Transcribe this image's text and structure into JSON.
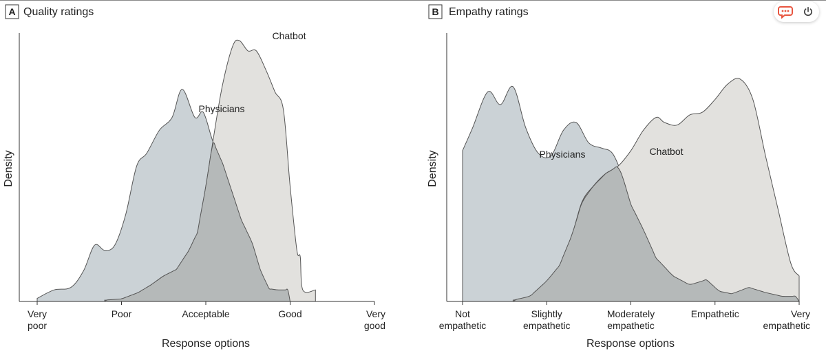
{
  "colors": {
    "physicians_fill": "#cbd2d6",
    "chatbot_fill": "#e2e1de",
    "overlap_fill": "#b5b9b9",
    "outline": "#555555",
    "widget_accent": "#e8553f",
    "widget_icon": "#444444"
  },
  "widget": {
    "chat_icon": "chat-bubble-icon",
    "power_icon": "power-icon"
  },
  "chart_data": [
    {
      "type": "area",
      "panel_letter": "A",
      "title": "Quality ratings",
      "xlabel": "Response options",
      "ylabel": "Density",
      "xlim": [
        1,
        5
      ],
      "y_ticks_shown": false,
      "categories": [
        [
          "Very",
          "poor"
        ],
        [
          "Poor"
        ],
        [
          "Acceptable"
        ],
        [
          "Good"
        ],
        [
          "Very",
          "good"
        ]
      ],
      "series": [
        {
          "name": "Physicians",
          "fill": "physicians_fill",
          "points": [
            [
              1,
              0.012
            ],
            [
              1.2,
              0.045
            ],
            [
              1.4,
              0.055
            ],
            [
              1.55,
              0.12
            ],
            [
              1.68,
              0.22
            ],
            [
              1.8,
              0.2
            ],
            [
              1.92,
              0.22
            ],
            [
              2.05,
              0.34
            ],
            [
              2.18,
              0.53
            ],
            [
              2.3,
              0.58
            ],
            [
              2.45,
              0.67
            ],
            [
              2.6,
              0.72
            ],
            [
              2.72,
              0.83
            ],
            [
              2.87,
              0.72
            ],
            [
              2.97,
              0.74
            ],
            [
              3.08,
              0.63
            ],
            [
              3.2,
              0.54
            ],
            [
              3.3,
              0.44
            ],
            [
              3.42,
              0.32
            ],
            [
              3.55,
              0.23
            ],
            [
              3.65,
              0.12
            ],
            [
              3.75,
              0.05
            ],
            [
              3.85,
              0.045
            ],
            [
              4,
              0.045
            ]
          ]
        },
        {
          "name": "Chatbot",
          "fill": "chatbot_fill",
          "points": [
            [
              1.8,
              0.005
            ],
            [
              2,
              0.01
            ],
            [
              2.2,
              0.035
            ],
            [
              2.35,
              0.065
            ],
            [
              2.5,
              0.1
            ],
            [
              2.65,
              0.125
            ],
            [
              2.8,
              0.2
            ],
            [
              2.9,
              0.27
            ],
            [
              3,
              0.45
            ],
            [
              3.1,
              0.66
            ],
            [
              3.2,
              0.85
            ],
            [
              3.32,
              1.0
            ],
            [
              3.4,
              1.02
            ],
            [
              3.5,
              0.98
            ],
            [
              3.6,
              0.98
            ],
            [
              3.72,
              0.9
            ],
            [
              3.82,
              0.82
            ],
            [
              3.92,
              0.75
            ],
            [
              4,
              0.45
            ],
            [
              4.08,
              0.2
            ],
            [
              4.12,
              0.175
            ],
            [
              4.15,
              0.045
            ],
            [
              4.3,
              0.045
            ]
          ]
        }
      ],
      "annotations": [
        "Physicians",
        "Chatbot"
      ]
    },
    {
      "type": "area",
      "panel_letter": "B",
      "title": "Empathy ratings",
      "xlabel": "Response options",
      "ylabel": "Density",
      "xlim": [
        1,
        5
      ],
      "y_ticks_shown": false,
      "categories": [
        [
          "Not",
          "empathetic"
        ],
        [
          "Slightly",
          "empathetic"
        ],
        [
          "Moderately",
          "empathetic"
        ],
        [
          "Empathetic"
        ],
        [
          "Very",
          "empathetic"
        ]
      ],
      "series": [
        {
          "name": "Physicians",
          "fill": "physicians_fill",
          "points": [
            [
              1,
              0.59
            ],
            [
              1.12,
              0.68
            ],
            [
              1.3,
              0.82
            ],
            [
              1.45,
              0.77
            ],
            [
              1.6,
              0.84
            ],
            [
              1.75,
              0.68
            ],
            [
              1.9,
              0.58
            ],
            [
              2.05,
              0.57
            ],
            [
              2.2,
              0.67
            ],
            [
              2.35,
              0.7
            ],
            [
              2.5,
              0.62
            ],
            [
              2.65,
              0.6
            ],
            [
              2.78,
              0.58
            ],
            [
              2.9,
              0.49
            ],
            [
              3,
              0.38
            ],
            [
              3.15,
              0.28
            ],
            [
              3.3,
              0.17
            ],
            [
              3.5,
              0.1
            ],
            [
              3.7,
              0.065
            ],
            [
              3.9,
              0.085
            ],
            [
              4.05,
              0.04
            ],
            [
              4.2,
              0.03
            ],
            [
              4.4,
              0.055
            ],
            [
              4.6,
              0.035
            ],
            [
              4.8,
              0.02
            ],
            [
              5,
              0.02
            ]
          ]
        },
        {
          "name": "Chatbot",
          "fill": "chatbot_fill",
          "points": [
            [
              1.6,
              0.005
            ],
            [
              1.8,
              0.02
            ],
            [
              2,
              0.08
            ],
            [
              2.15,
              0.14
            ],
            [
              2.3,
              0.26
            ],
            [
              2.42,
              0.39
            ],
            [
              2.55,
              0.45
            ],
            [
              2.7,
              0.5
            ],
            [
              2.85,
              0.53
            ],
            [
              3,
              0.59
            ],
            [
              3.15,
              0.67
            ],
            [
              3.3,
              0.72
            ],
            [
              3.4,
              0.7
            ],
            [
              3.55,
              0.69
            ],
            [
              3.7,
              0.73
            ],
            [
              3.85,
              0.74
            ],
            [
              4,
              0.79
            ],
            [
              4.15,
              0.85
            ],
            [
              4.3,
              0.87
            ],
            [
              4.45,
              0.79
            ],
            [
              4.6,
              0.57
            ],
            [
              4.75,
              0.36
            ],
            [
              4.9,
              0.15
            ],
            [
              5,
              0.1
            ]
          ]
        }
      ],
      "annotations": [
        "Physicians",
        "Chatbot"
      ]
    }
  ]
}
